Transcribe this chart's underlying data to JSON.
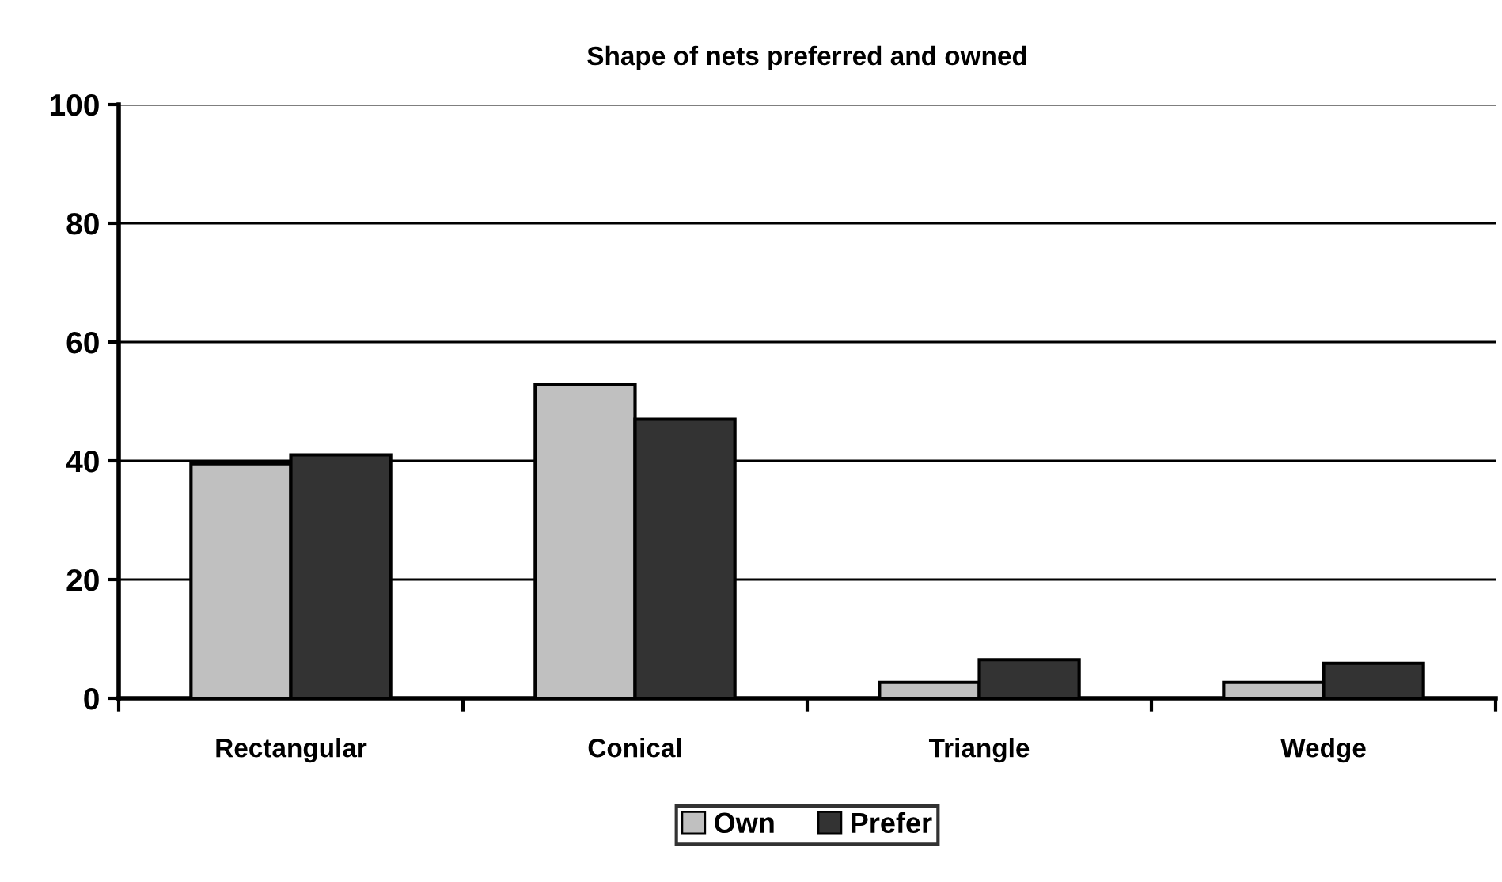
{
  "chart_data": {
    "type": "bar",
    "title": "Shape of nets preferred and owned",
    "categories": [
      "Rectangular",
      "Conical",
      "Triangle",
      "Wedge"
    ],
    "series": [
      {
        "name": "Own",
        "color": "#c0c0c0",
        "values": [
          39.5,
          52.8,
          2.7,
          2.7
        ]
      },
      {
        "name": "Prefer",
        "color": "#333333",
        "values": [
          41,
          47,
          6.5,
          5.9
        ]
      }
    ],
    "ylim": [
      0,
      100
    ],
    "yticks": [
      0,
      20,
      40,
      60,
      80,
      100
    ],
    "grid": "y",
    "legend": "bottom"
  }
}
